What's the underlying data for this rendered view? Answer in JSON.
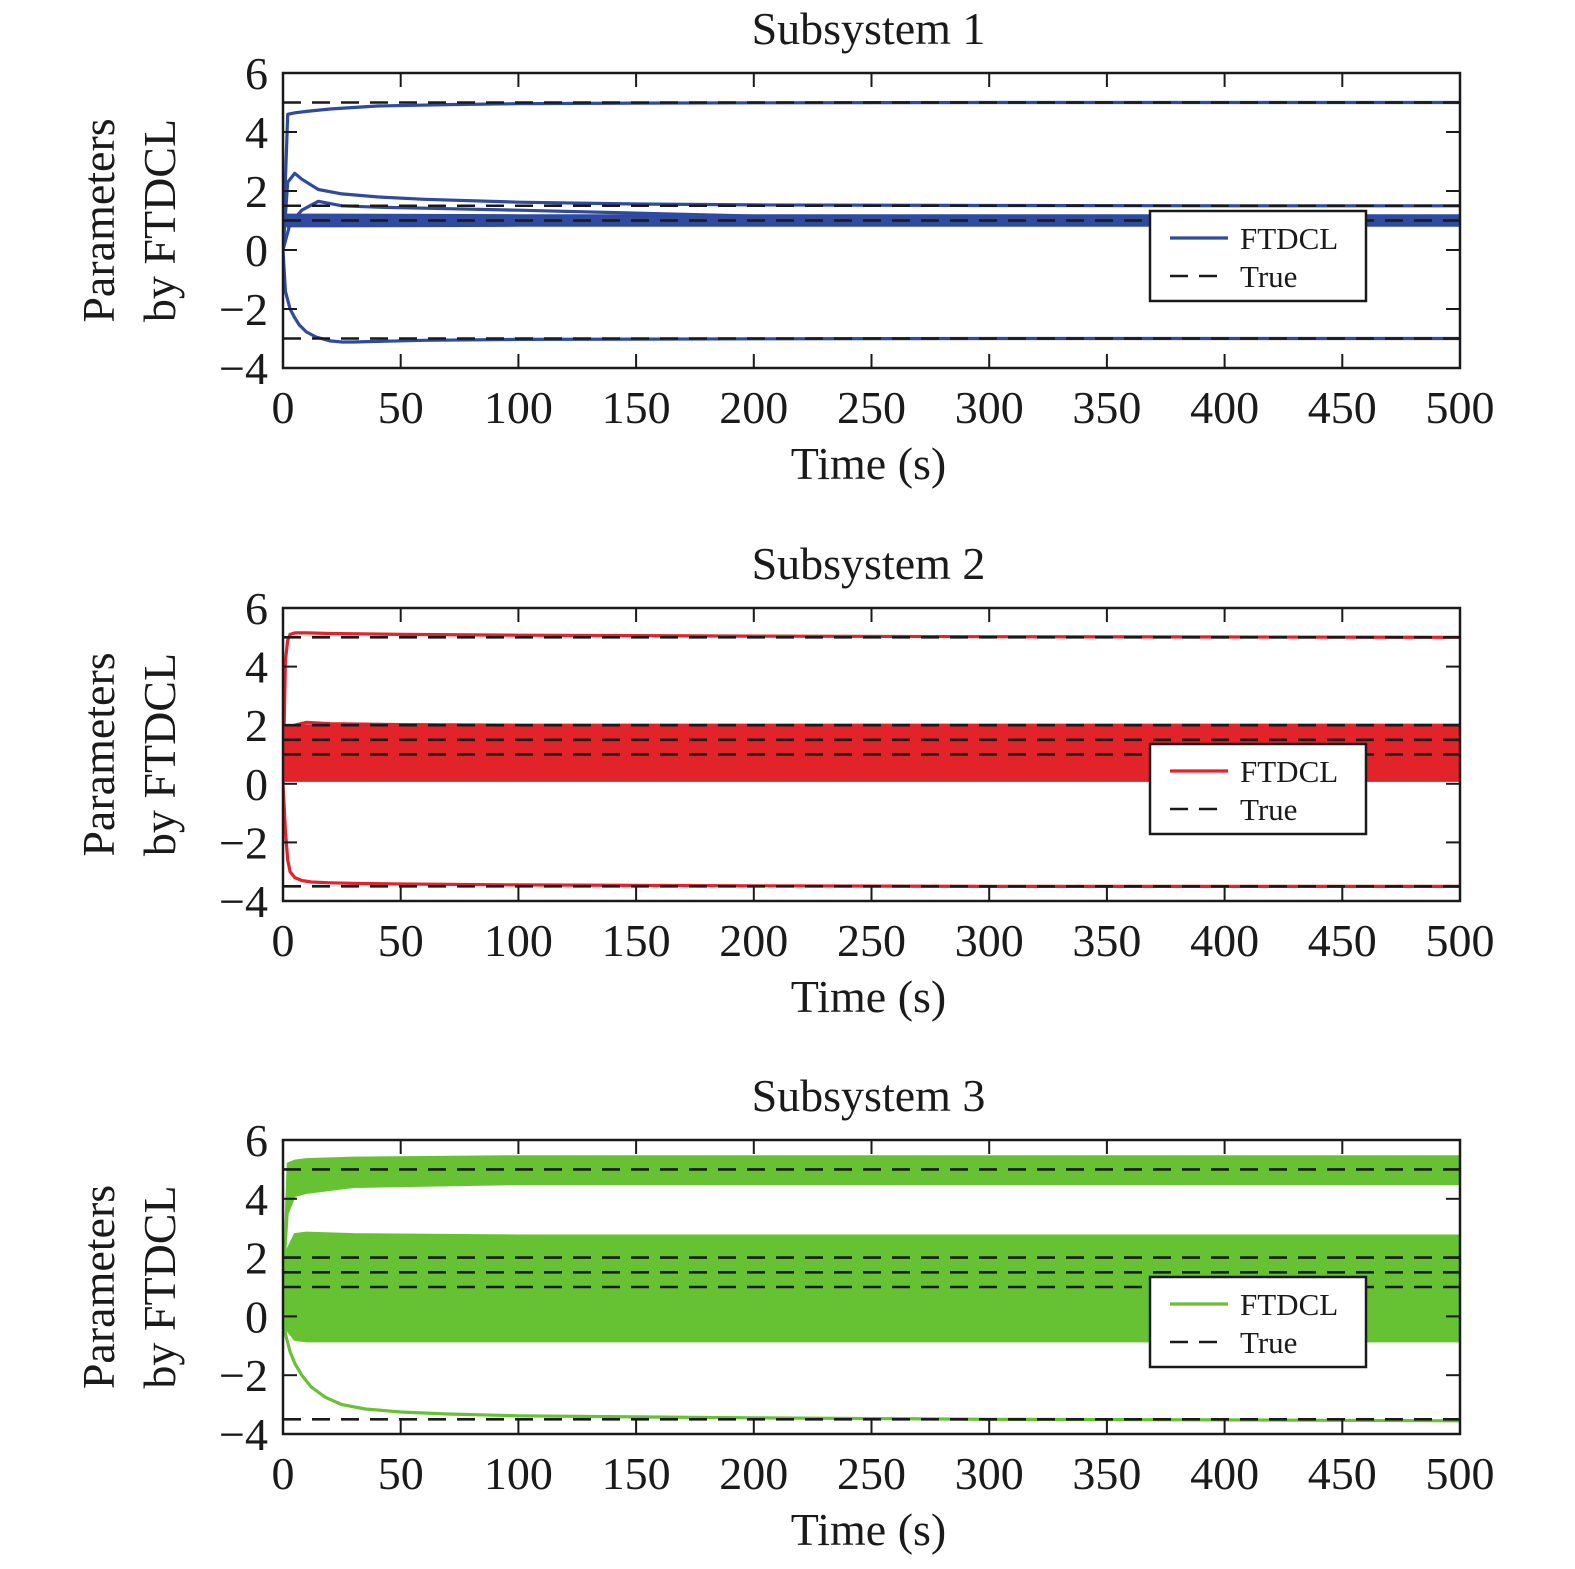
{
  "chart_data": [
    {
      "type": "line",
      "title": "Subsystem 1",
      "xlabel": "Time (s)",
      "ylabel": [
        "Parameters",
        "by FTDCL"
      ],
      "xlim": [
        0,
        500
      ],
      "ylim": [
        -4,
        6
      ],
      "xticks": [
        "0",
        "50",
        "100",
        "150",
        "200",
        "250",
        "300",
        "350",
        "400",
        "450",
        "500"
      ],
      "yticks": [
        "−4",
        "−2",
        "0",
        "2",
        "4",
        "6"
      ],
      "grid": false,
      "legend": {
        "position": "lower-right",
        "entries": [
          "FTDCL",
          "True"
        ]
      },
      "series_color": "#2f4a9e",
      "true_values": [
        5,
        1.5,
        1,
        -3
      ],
      "series": [
        {
          "x": [
            0,
            2,
            5,
            10,
            20,
            40,
            70,
            100,
            150,
            200,
            300,
            400,
            500
          ],
          "y": [
            0,
            4.6,
            4.65,
            4.7,
            4.78,
            4.88,
            4.93,
            4.96,
            4.98,
            4.99,
            5.0,
            5.0,
            5.0
          ]
        },
        {
          "x": [
            0,
            2,
            5,
            8,
            15,
            25,
            40,
            60,
            100,
            150,
            200,
            300,
            400,
            500
          ],
          "y": [
            0,
            2.3,
            2.6,
            2.4,
            2.05,
            1.9,
            1.8,
            1.72,
            1.62,
            1.56,
            1.53,
            1.51,
            1.5,
            1.5
          ]
        },
        {
          "x": [
            0,
            3,
            8,
            15,
            25,
            40,
            70,
            100,
            200,
            300,
            400,
            500
          ],
          "y": [
            0,
            0.9,
            1.35,
            1.65,
            1.5,
            1.45,
            1.4,
            1.35,
            1.15,
            1.05,
            1.02,
            1.0
          ]
        },
        {
          "x": [
            0,
            1,
            3,
            5,
            7,
            10,
            14,
            20,
            25,
            30,
            40,
            60,
            100,
            200,
            300,
            400,
            500
          ],
          "y": [
            0,
            -1.4,
            -2.0,
            -2.3,
            -2.55,
            -2.78,
            -2.95,
            -3.08,
            -3.12,
            -3.12,
            -3.1,
            -3.06,
            -3.03,
            -3.01,
            -3.0,
            -3.0,
            -3.0
          ]
        }
      ],
      "band": {
        "x": [
          0,
          20,
          100,
          300,
          500
        ],
        "low": [
          0.8,
          0.8,
          0.82,
          0.82,
          0.82
        ],
        "high": [
          1.2,
          1.2,
          1.18,
          1.18,
          1.18
        ]
      }
    },
    {
      "type": "line",
      "title": "Subsystem 2",
      "xlabel": "Time (s)",
      "ylabel": [
        "Parameters",
        "by FTDCL"
      ],
      "xlim": [
        0,
        500
      ],
      "ylim": [
        -4,
        6
      ],
      "xticks": [
        "0",
        "50",
        "100",
        "150",
        "200",
        "250",
        "300",
        "350",
        "400",
        "450",
        "500"
      ],
      "yticks": [
        "−4",
        "−2",
        "0",
        "2",
        "4",
        "6"
      ],
      "grid": false,
      "legend": {
        "position": "lower-right",
        "entries": [
          "FTDCL",
          "True"
        ]
      },
      "series_color": "#e2232a",
      "true_values": [
        5,
        2,
        1.5,
        1,
        -3.5
      ],
      "series": [
        {
          "x": [
            0,
            1,
            2,
            3,
            5,
            10,
            20,
            50,
            100,
            200,
            300,
            400,
            500
          ],
          "y": [
            0,
            4.2,
            4.9,
            5.1,
            5.15,
            5.15,
            5.13,
            5.1,
            5.07,
            5.04,
            5.02,
            5.01,
            5.0
          ]
        },
        {
          "x": [
            0,
            2,
            5,
            10,
            20,
            50,
            100,
            200,
            500
          ],
          "y": [
            0,
            1.8,
            2.0,
            2.1,
            2.05,
            2.02,
            2.0,
            2.0,
            2.0
          ]
        },
        {
          "x": [
            0,
            1,
            2,
            3,
            5,
            8,
            12,
            20,
            30,
            50,
            100,
            200,
            300,
            400,
            500
          ],
          "y": [
            0,
            -1.6,
            -2.6,
            -3.0,
            -3.2,
            -3.3,
            -3.35,
            -3.38,
            -3.4,
            -3.42,
            -3.45,
            -3.48,
            -3.5,
            -3.5,
            -3.5
          ]
        }
      ],
      "band": {
        "x": [
          0,
          3,
          10,
          500
        ],
        "low": [
          0.1,
          0.1,
          0.1,
          0.1
        ],
        "high": [
          2.0,
          2.0,
          2.0,
          2.0
        ]
      }
    },
    {
      "type": "line",
      "title": "Subsystem 3",
      "xlabel": "Time (s)",
      "ylabel": [
        "Parameters",
        "by FTDCL"
      ],
      "xlim": [
        0,
        500
      ],
      "ylim": [
        -4,
        6
      ],
      "xticks": [
        "0",
        "50",
        "100",
        "150",
        "200",
        "250",
        "300",
        "350",
        "400",
        "450",
        "500"
      ],
      "yticks": [
        "−4",
        "−2",
        "0",
        "2",
        "4",
        "6"
      ],
      "grid": false,
      "legend": {
        "position": "lower-right",
        "entries": [
          "FTDCL",
          "True"
        ]
      },
      "series_color": "#66c232",
      "true_values": [
        5,
        2,
        1.5,
        1,
        -3.5
      ],
      "series": [
        {
          "x": [
            0,
            1,
            3,
            5,
            8,
            12,
            18,
            25,
            35,
            50,
            70,
            100,
            150,
            200,
            300,
            400,
            500
          ],
          "y": [
            0.6,
            -0.6,
            -1.2,
            -1.6,
            -2.0,
            -2.4,
            -2.75,
            -3.0,
            -3.15,
            -3.25,
            -3.32,
            -3.38,
            -3.42,
            -3.45,
            -3.5,
            -3.52,
            -3.55
          ]
        }
      ],
      "bands": [
        {
          "x": [
            0,
            2,
            5,
            10,
            30,
            100,
            300,
            500
          ],
          "low": [
            0.8,
            3.5,
            4.1,
            4.2,
            4.4,
            4.5,
            4.5,
            4.5
          ],
          "high": [
            0.8,
            5.2,
            5.3,
            5.35,
            5.4,
            5.45,
            5.45,
            5.45
          ]
        },
        {
          "x": [
            0,
            2,
            5,
            10,
            30,
            100,
            300,
            500
          ],
          "low": [
            0.6,
            -0.5,
            -0.8,
            -0.85,
            -0.85,
            -0.85,
            -0.85,
            -0.85
          ],
          "high": [
            0.8,
            2.3,
            2.8,
            2.85,
            2.8,
            2.75,
            2.75,
            2.75
          ]
        }
      ]
    }
  ]
}
